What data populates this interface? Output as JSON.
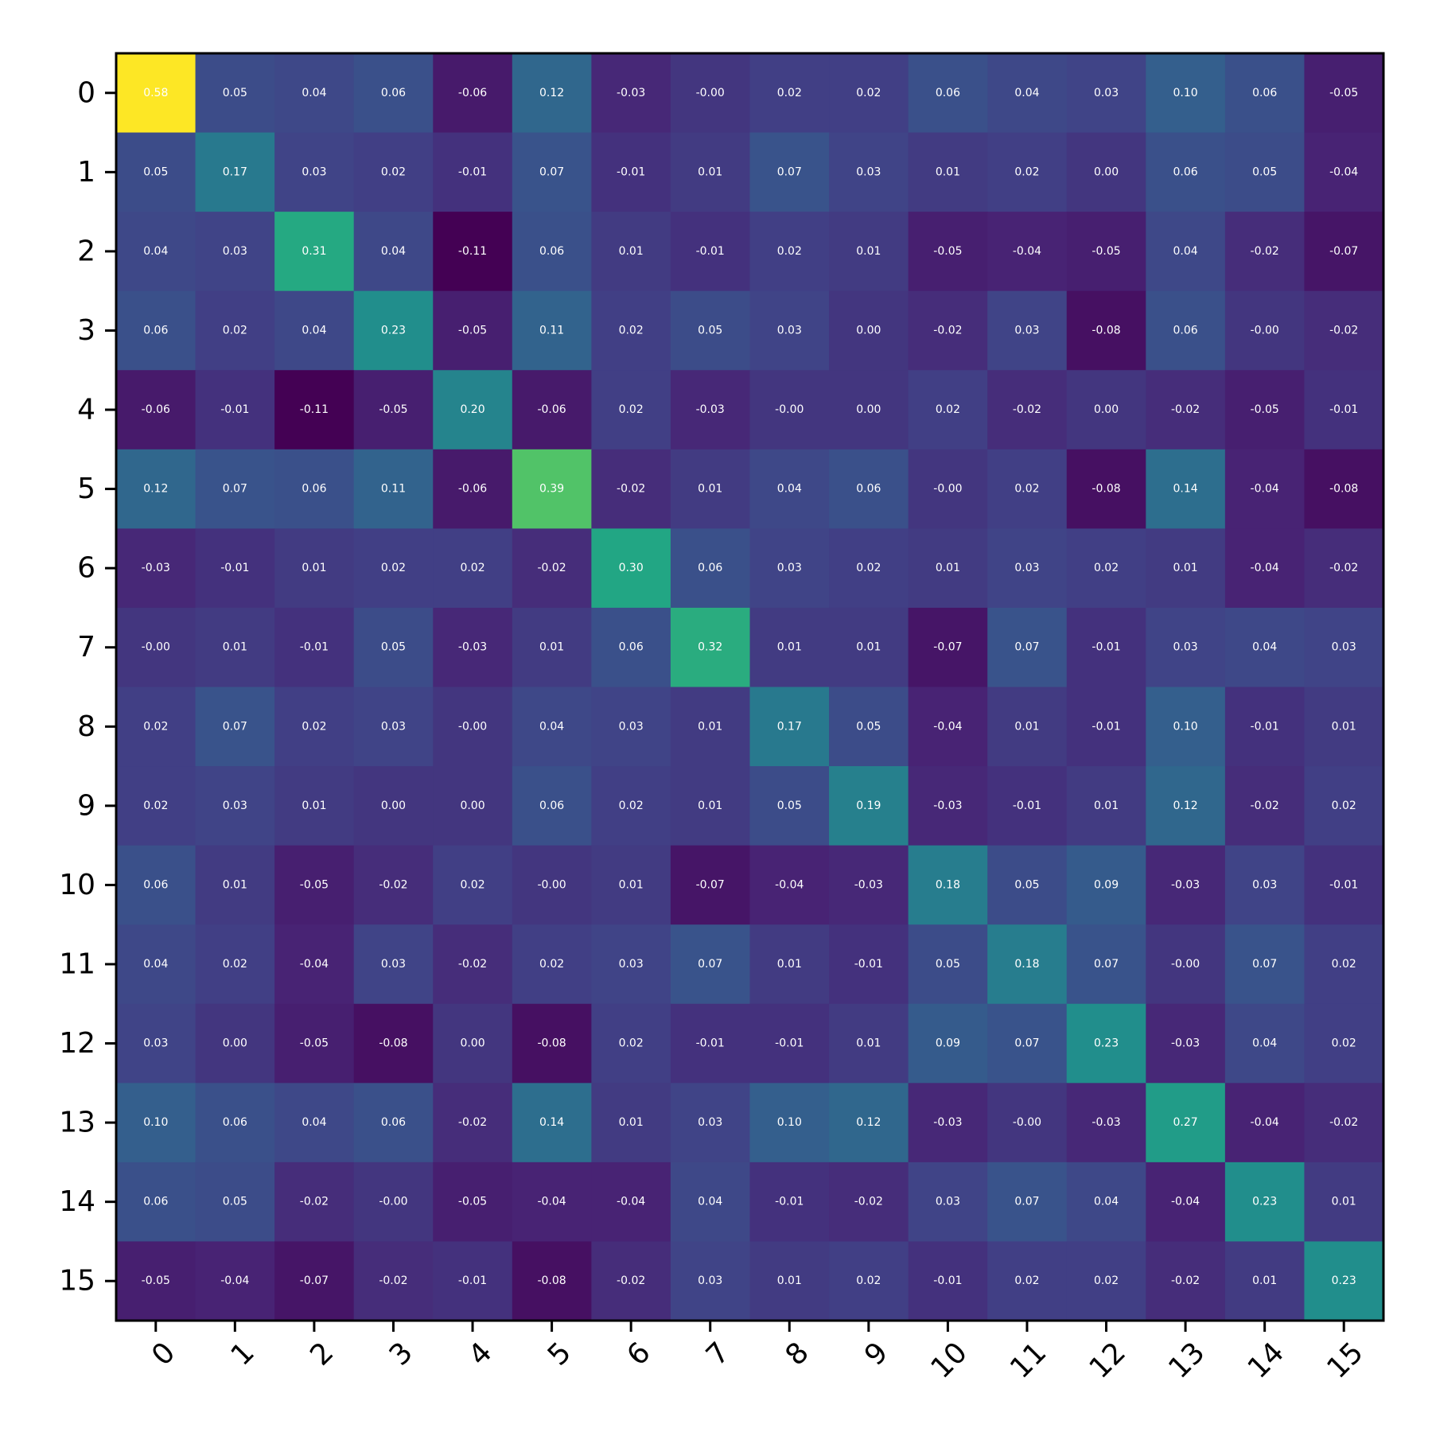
{
  "chart_data": {
    "type": "heatmap",
    "title": "",
    "xlabel": "",
    "ylabel": "",
    "x_categories": [
      "0",
      "1",
      "2",
      "3",
      "4",
      "5",
      "6",
      "7",
      "8",
      "9",
      "10",
      "11",
      "12",
      "13",
      "14",
      "15"
    ],
    "y_categories": [
      "0",
      "1",
      "2",
      "3",
      "4",
      "5",
      "6",
      "7",
      "8",
      "9",
      "10",
      "11",
      "12",
      "13",
      "14",
      "15"
    ],
    "colormap": "viridis",
    "vmin": -0.11,
    "vmax": 0.58,
    "value_format": "2 decimals",
    "grid": false,
    "x_tick_rotation_deg": 45,
    "values": [
      [
        0.58,
        0.05,
        0.04,
        0.06,
        -0.06,
        0.12,
        -0.03,
        -0.0,
        0.02,
        0.02,
        0.06,
        0.04,
        0.03,
        0.1,
        0.06,
        -0.05
      ],
      [
        0.05,
        0.17,
        0.03,
        0.02,
        -0.01,
        0.07,
        -0.01,
        0.01,
        0.07,
        0.03,
        0.01,
        0.02,
        0.0,
        0.06,
        0.05,
        -0.04
      ],
      [
        0.04,
        0.03,
        0.31,
        0.04,
        -0.11,
        0.06,
        0.01,
        -0.01,
        0.02,
        0.01,
        -0.05,
        -0.04,
        -0.05,
        0.04,
        -0.02,
        -0.07
      ],
      [
        0.06,
        0.02,
        0.04,
        0.23,
        -0.05,
        0.11,
        0.02,
        0.05,
        0.03,
        0.0,
        -0.02,
        0.03,
        -0.08,
        0.06,
        -0.0,
        -0.02
      ],
      [
        -0.06,
        -0.01,
        -0.11,
        -0.05,
        0.2,
        -0.06,
        0.02,
        -0.03,
        -0.0,
        0.0,
        0.02,
        -0.02,
        0.0,
        -0.02,
        -0.05,
        -0.01
      ],
      [
        0.12,
        0.07,
        0.06,
        0.11,
        -0.06,
        0.39,
        -0.02,
        0.01,
        0.04,
        0.06,
        -0.0,
        0.02,
        -0.08,
        0.14,
        -0.04,
        -0.08
      ],
      [
        -0.03,
        -0.01,
        0.01,
        0.02,
        0.02,
        -0.02,
        0.3,
        0.06,
        0.03,
        0.02,
        0.01,
        0.03,
        0.02,
        0.01,
        -0.04,
        -0.02
      ],
      [
        -0.0,
        0.01,
        -0.01,
        0.05,
        -0.03,
        0.01,
        0.06,
        0.32,
        0.01,
        0.01,
        -0.07,
        0.07,
        -0.01,
        0.03,
        0.04,
        0.03
      ],
      [
        0.02,
        0.07,
        0.02,
        0.03,
        -0.0,
        0.04,
        0.03,
        0.01,
        0.17,
        0.05,
        -0.04,
        0.01,
        -0.01,
        0.1,
        -0.01,
        0.01
      ],
      [
        0.02,
        0.03,
        0.01,
        0.0,
        0.0,
        0.06,
        0.02,
        0.01,
        0.05,
        0.19,
        -0.03,
        -0.01,
        0.01,
        0.12,
        -0.02,
        0.02
      ],
      [
        0.06,
        0.01,
        -0.05,
        -0.02,
        0.02,
        -0.0,
        0.01,
        -0.07,
        -0.04,
        -0.03,
        0.18,
        0.05,
        0.09,
        -0.03,
        0.03,
        -0.01
      ],
      [
        0.04,
        0.02,
        -0.04,
        0.03,
        -0.02,
        0.02,
        0.03,
        0.07,
        0.01,
        -0.01,
        0.05,
        0.18,
        0.07,
        -0.0,
        0.07,
        0.02
      ],
      [
        0.03,
        0.0,
        -0.05,
        -0.08,
        0.0,
        -0.08,
        0.02,
        -0.01,
        -0.01,
        0.01,
        0.09,
        0.07,
        0.23,
        -0.03,
        0.04,
        0.02
      ],
      [
        0.1,
        0.06,
        0.04,
        0.06,
        -0.02,
        0.14,
        0.01,
        0.03,
        0.1,
        0.12,
        -0.03,
        -0.0,
        -0.03,
        0.27,
        -0.04,
        -0.02
      ],
      [
        0.06,
        0.05,
        -0.02,
        -0.0,
        -0.05,
        -0.04,
        -0.04,
        0.04,
        -0.01,
        -0.02,
        0.03,
        0.07,
        0.04,
        -0.04,
        0.23,
        0.01
      ],
      [
        -0.05,
        -0.04,
        -0.07,
        -0.02,
        -0.01,
        -0.08,
        -0.02,
        0.03,
        0.01,
        0.02,
        -0.01,
        0.02,
        0.02,
        -0.02,
        0.01,
        0.23
      ]
    ]
  }
}
